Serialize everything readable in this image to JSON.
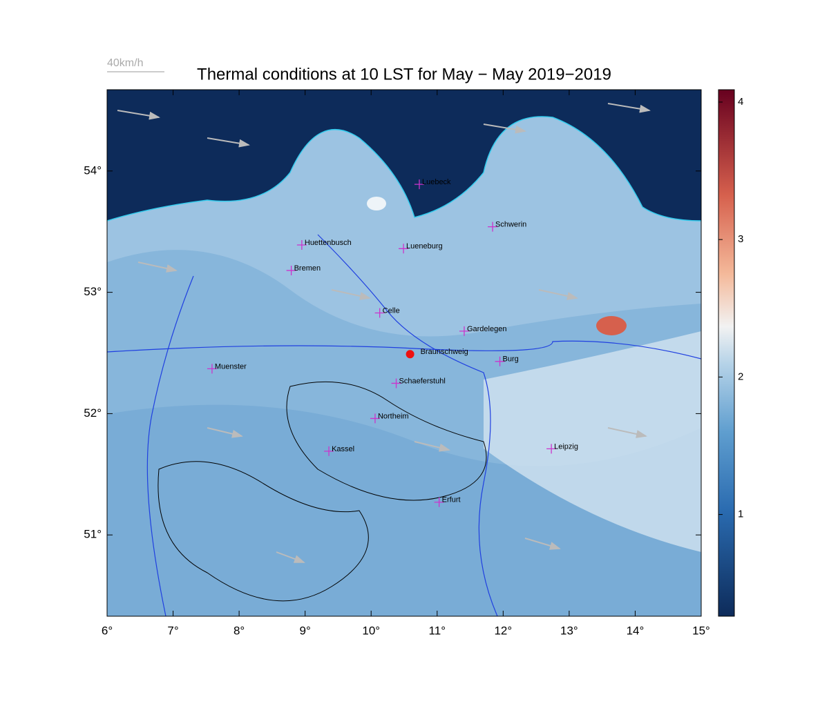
{
  "map": {
    "title": "Thermal conditions at 10 LST for May − May  2019−2019",
    "wind_legend": "40km/h",
    "xlim": [
      6,
      15
    ],
    "ylim": [
      50.33,
      54.67
    ],
    "xticks": [
      {
        "value": 6,
        "label": "6°"
      },
      {
        "value": 7,
        "label": "7°"
      },
      {
        "value": 8,
        "label": "8°"
      },
      {
        "value": 9,
        "label": "9°"
      },
      {
        "value": 10,
        "label": "10°"
      },
      {
        "value": 11,
        "label": "11°"
      },
      {
        "value": 12,
        "label": "12°"
      },
      {
        "value": 13,
        "label": "13°"
      },
      {
        "value": 14,
        "label": "14°"
      },
      {
        "value": 15,
        "label": "15°"
      }
    ],
    "yticks": [
      {
        "value": 51,
        "label": "51°"
      },
      {
        "value": 52,
        "label": "52°"
      },
      {
        "value": 53,
        "label": "53°"
      },
      {
        "value": 54,
        "label": "54°"
      }
    ],
    "colorbar": {
      "clim": [
        0.26,
        4.09
      ],
      "ticks": [
        1,
        2,
        3,
        4
      ]
    },
    "cities": [
      {
        "name": "Luebeck",
        "lon": 10.73,
        "lat": 53.89,
        "marker": "cross"
      },
      {
        "name": "Schwerin",
        "lon": 11.84,
        "lat": 53.54,
        "marker": "cross"
      },
      {
        "name": "Huettenbusch",
        "lon": 8.95,
        "lat": 53.39,
        "marker": "cross"
      },
      {
        "name": "Lueneburg",
        "lon": 10.49,
        "lat": 53.36,
        "marker": "cross"
      },
      {
        "name": "Bremen",
        "lon": 8.79,
        "lat": 53.18,
        "marker": "cross"
      },
      {
        "name": "Celle",
        "lon": 10.13,
        "lat": 52.83,
        "marker": "cross"
      },
      {
        "name": "Gardelegen",
        "lon": 11.41,
        "lat": 52.68,
        "marker": "cross"
      },
      {
        "name": "Braunschweig",
        "lon": 10.59,
        "lat": 52.49,
        "marker": "dot"
      },
      {
        "name": "Burg",
        "lon": 11.95,
        "lat": 52.43,
        "marker": "cross"
      },
      {
        "name": "Muenster",
        "lon": 7.59,
        "lat": 52.37,
        "marker": "cross"
      },
      {
        "name": "Schaeferstuhl",
        "lon": 10.38,
        "lat": 52.25,
        "marker": "cross"
      },
      {
        "name": "Northeim",
        "lon": 10.06,
        "lat": 51.96,
        "marker": "cross"
      },
      {
        "name": "Kassel",
        "lon": 9.36,
        "lat": 51.69,
        "marker": "cross"
      },
      {
        "name": "Leipzig",
        "lon": 12.73,
        "lat": 51.71,
        "marker": "cross"
      },
      {
        "name": "Erfurt",
        "lon": 11.03,
        "lat": 51.27,
        "marker": "cross"
      }
    ]
  }
}
